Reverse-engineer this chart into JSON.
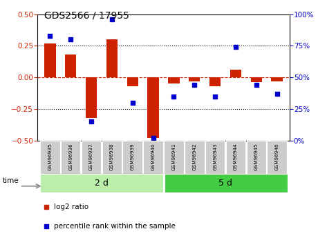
{
  "title": "GDS2566 / 17955",
  "samples": [
    "GSM96935",
    "GSM96936",
    "GSM96937",
    "GSM96938",
    "GSM96939",
    "GSM96940",
    "GSM96941",
    "GSM96942",
    "GSM96943",
    "GSM96944",
    "GSM96945",
    "GSM96946"
  ],
  "log2_ratio": [
    0.27,
    0.18,
    -0.32,
    0.3,
    -0.07,
    -0.48,
    -0.05,
    -0.03,
    -0.07,
    0.06,
    -0.04,
    -0.03
  ],
  "percentile_rank": [
    83,
    80,
    15,
    96,
    30,
    2,
    35,
    44,
    35,
    74,
    44,
    37
  ],
  "group1_label": "2 d",
  "group1_count": 6,
  "group2_label": "5 d",
  "group2_count": 6,
  "ylim_left": [
    -0.5,
    0.5
  ],
  "ylim_right": [
    0,
    100
  ],
  "yticks_left": [
    -0.5,
    -0.25,
    0.0,
    0.25,
    0.5
  ],
  "yticks_right": [
    0,
    25,
    50,
    75,
    100
  ],
  "bar_color": "#cc2200",
  "dot_color": "#0000cc",
  "dotted_line_color": "#000000",
  "zero_line_color": "#cc2200",
  "group1_bg": "#bbeeaa",
  "group2_bg": "#44cc44",
  "tick_bg": "#cccccc",
  "legend_bar_label": "log2 ratio",
  "legend_dot_label": "percentile rank within the sample",
  "time_label": "time"
}
